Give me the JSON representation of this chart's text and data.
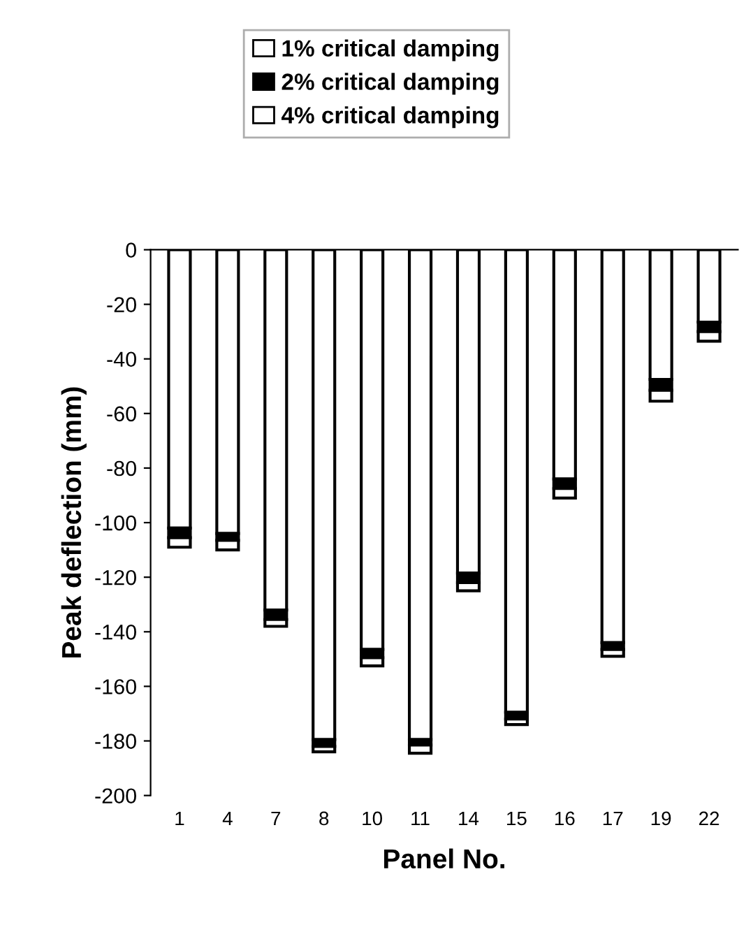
{
  "chart_data": {
    "type": "bar",
    "stacked": true,
    "xlabel": "Panel No.",
    "ylabel": "Peak deflection (mm)",
    "categories": [
      "1",
      "4",
      "7",
      "8",
      "10",
      "11",
      "14",
      "15",
      "16",
      "17",
      "19",
      "22"
    ],
    "series": [
      {
        "name": "1% critical damping",
        "color": "#ffffff",
        "values": [
          -102,
          -104,
          -132,
          -179.5,
          -146.5,
          -179.5,
          -118.5,
          -169.5,
          -84,
          -144,
          -47.5,
          -26.5
        ]
      },
      {
        "name": "2% critical damping",
        "color": "#000000",
        "values": [
          -3.5,
          -2.5,
          -3.5,
          -2.5,
          -3,
          -2,
          -3.5,
          -2.5,
          -3.5,
          -2.5,
          -4,
          -3.5
        ]
      },
      {
        "name": "4% critical damping",
        "color": "#ffffff",
        "values": [
          -3.5,
          -3.5,
          -2.5,
          -2,
          -3,
          -3,
          -3,
          -2,
          -3.5,
          -2.5,
          -4,
          -3.5
        ]
      }
    ],
    "ylim": [
      -200,
      0
    ],
    "yticks": [
      0,
      -20,
      -40,
      -60,
      -80,
      -100,
      -120,
      -140,
      -160,
      -180,
      -200
    ],
    "grid": false,
    "legend": "top"
  }
}
